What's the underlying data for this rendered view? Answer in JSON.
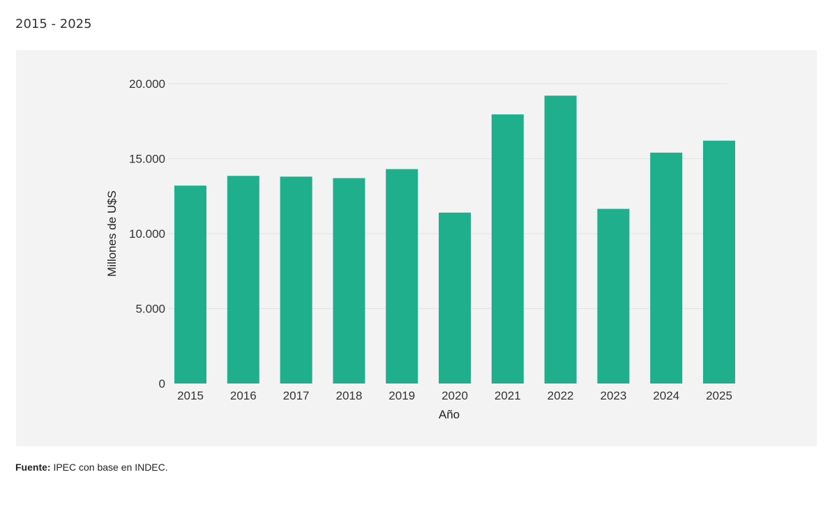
{
  "subtitle": "2015 - 2025",
  "source": {
    "label": "Fuente:",
    "text": "IPEC con base en INDEC."
  },
  "colors": {
    "bar": "#1faf8c",
    "panel_background": "#f3f3f3",
    "gridline": "#e2e2e2"
  },
  "chart_data": {
    "type": "bar",
    "categories": [
      "2015",
      "2016",
      "2017",
      "2018",
      "2019",
      "2020",
      "2021",
      "2022",
      "2023",
      "2024",
      "2025"
    ],
    "values": [
      13200,
      13850,
      13800,
      13700,
      14300,
      11400,
      17950,
      19200,
      11650,
      15400,
      16200
    ],
    "xlabel": "Año",
    "ylabel": "Millones de U$S",
    "ylim": [
      0,
      20000
    ],
    "yticks": [
      {
        "value": 0,
        "label": "0"
      },
      {
        "value": 5000,
        "label": "5.000"
      },
      {
        "value": 10000,
        "label": "10.000"
      },
      {
        "value": 15000,
        "label": "15.000"
      },
      {
        "value": 20000,
        "label": "20.000"
      }
    ],
    "grid": true,
    "legend": "none"
  }
}
